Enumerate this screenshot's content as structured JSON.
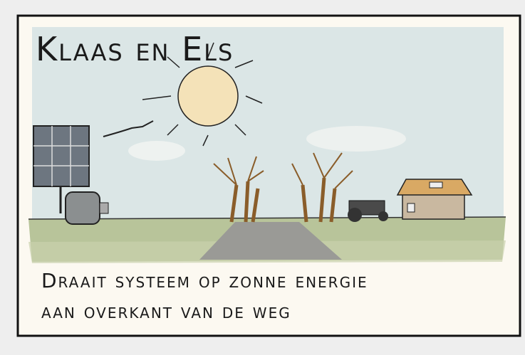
{
  "panel": {
    "title": "Klaas en Els",
    "caption": [
      "Draait systeem op zonne energie",
      "aan overkant van de weg"
    ]
  }
}
